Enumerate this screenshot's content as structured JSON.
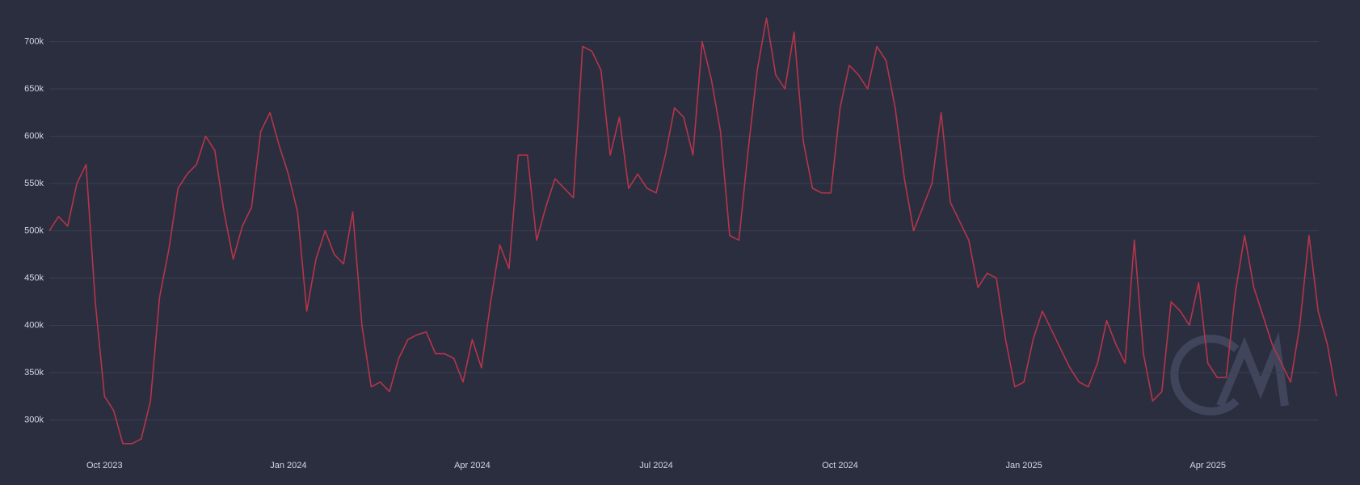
{
  "chart_data": {
    "type": "line",
    "categories": [
      null,
      null,
      null,
      null,
      null,
      null,
      "Oct 2023",
      null,
      null,
      null,
      null,
      null,
      null,
      null,
      null,
      null,
      null,
      null,
      null,
      null,
      null,
      null,
      null,
      null,
      null,
      null,
      "Jan 2024",
      null,
      null,
      null,
      null,
      null,
      null,
      null,
      null,
      null,
      null,
      null,
      null,
      null,
      null,
      null,
      null,
      null,
      null,
      null,
      "Apr 2024",
      null,
      null,
      null,
      null,
      null,
      null,
      null,
      null,
      null,
      null,
      null,
      null,
      null,
      null,
      null,
      null,
      null,
      null,
      null,
      "Jul 2024",
      null,
      null,
      null,
      null,
      null,
      null,
      null,
      null,
      null,
      null,
      null,
      null,
      null,
      null,
      null,
      null,
      null,
      null,
      null,
      "Oct 2024",
      null,
      null,
      null,
      null,
      null,
      null,
      null,
      null,
      null,
      null,
      null,
      null,
      null,
      null,
      null,
      null,
      null,
      null,
      null,
      "Jan 2025",
      null,
      null,
      null,
      null,
      null,
      null,
      null,
      null,
      null,
      null,
      null,
      null,
      null,
      null,
      null,
      null,
      null,
      null,
      null,
      "Apr 2025",
      null,
      null,
      null,
      null,
      null,
      null,
      null,
      null,
      null,
      null,
      null,
      null,
      null,
      null
    ],
    "series": [
      {
        "color": "#b5354a",
        "values": [
          500000,
          515000,
          505000,
          550000,
          570000,
          425000,
          325000,
          310000,
          275000,
          275000,
          280000,
          320000,
          430000,
          480000,
          545000,
          560000,
          570000,
          600000,
          585000,
          520000,
          470000,
          505000,
          525000,
          605000,
          625000,
          590000,
          560000,
          520000,
          415000,
          470000,
          500000,
          475000,
          465000,
          520000,
          400000,
          335000,
          340000,
          330000,
          365000,
          385000,
          390000,
          393000,
          370000,
          370000,
          365000,
          340000,
          385000,
          355000,
          425000,
          485000,
          460000,
          580000,
          580000,
          490000,
          525000,
          555000,
          545000,
          535000,
          695000,
          690000,
          670000,
          580000,
          620000,
          545000,
          560000,
          545000,
          540000,
          580000,
          630000,
          620000,
          580000,
          700000,
          660000,
          605000,
          495000,
          490000,
          585000,
          670000,
          725000,
          665000,
          650000,
          710000,
          595000,
          545000,
          540000,
          540000,
          630000,
          675000,
          665000,
          650000,
          695000,
          680000,
          630000,
          555000,
          500000,
          525000,
          550000,
          625000,
          530000,
          510000,
          490000,
          440000,
          455000,
          450000,
          385000,
          335000,
          340000,
          385000,
          415000,
          395000,
          375000,
          355000,
          340000,
          335000,
          360000,
          405000,
          380000,
          360000,
          490000,
          370000,
          320000,
          330000,
          425000,
          415000,
          400000,
          445000,
          360000,
          345000,
          345000,
          435000,
          495000,
          440000,
          410000,
          380000,
          360000,
          340000,
          400000,
          495000,
          415000,
          380000,
          325000
        ]
      }
    ],
    "ylim": [
      260000,
      740000
    ],
    "yticks": [
      {
        "value": 300000,
        "label": "300k"
      },
      {
        "value": 350000,
        "label": "350k"
      },
      {
        "value": 400000,
        "label": "400k"
      },
      {
        "value": 450000,
        "label": "450k"
      },
      {
        "value": 500000,
        "label": "500k"
      },
      {
        "value": 550000,
        "label": "550k"
      },
      {
        "value": 600000,
        "label": "600k"
      },
      {
        "value": 650000,
        "label": "650k"
      },
      {
        "value": 700000,
        "label": "700k"
      }
    ],
    "grid": true
  }
}
